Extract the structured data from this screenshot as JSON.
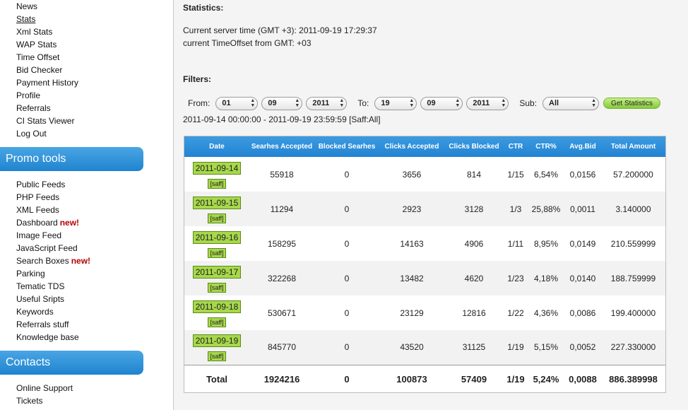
{
  "sidebar": {
    "top_items": [
      "News",
      "Stats",
      "Xml Stats",
      "WAP Stats",
      "Time Offset",
      "Bid Checker",
      "Payment History",
      "Profile",
      "Referrals",
      "CI Stats Viewer",
      "Log Out"
    ],
    "promo_title": "Promo tools",
    "promo_items": [
      {
        "label": "Public Feeds",
        "badge": ""
      },
      {
        "label": "PHP Feeds",
        "badge": ""
      },
      {
        "label": "XML Feeds",
        "badge": ""
      },
      {
        "label": "Dashboard",
        "badge": "new!"
      },
      {
        "label": "Image Feed",
        "badge": ""
      },
      {
        "label": "JavaScript Feed",
        "badge": ""
      },
      {
        "label": "Search Boxes",
        "badge": "new!"
      },
      {
        "label": "Parking",
        "badge": ""
      },
      {
        "label": "Tematic TDS",
        "badge": ""
      },
      {
        "label": "Useful Sripts",
        "badge": ""
      },
      {
        "label": "Keywords",
        "badge": ""
      },
      {
        "label": "Referrals stuff",
        "badge": ""
      },
      {
        "label": "Knowledge base",
        "badge": ""
      }
    ],
    "contacts_title": "Contacts",
    "contacts_items": [
      "Online Support",
      "Tickets"
    ]
  },
  "main": {
    "stats_title": "Statistics:",
    "server_time": "Current server time (GMT +3): 2011-09-19 17:29:37",
    "offset_line": "current TimeOffset from GMT: +03",
    "filters_title": "Filters:",
    "filters": {
      "from_label": "From:",
      "from_day": "01",
      "from_month": "09",
      "from_year": "2011",
      "to_label": "To:",
      "to_day": "19",
      "to_month": "09",
      "to_year": "2011",
      "sub_label": "Sub:",
      "sub_value": "All",
      "button_label": "Get Statistics"
    },
    "range_line": "2011-09-14 00:00:00 - 2011-09-19 23:59:59 [Saff:All]"
  },
  "table": {
    "headers": [
      "Date",
      "Searhes Accepted",
      "Blocked Searhes",
      "Clicks Accepted",
      "Clicks Blocked",
      "CTR",
      "CTR%",
      "Avg.Bid",
      "Total Amount"
    ],
    "rows": [
      {
        "date": "2011-09-14",
        "sub": "[saff]",
        "searches_accepted": "55918",
        "blocked_searches": "0",
        "clicks_accepted": "3656",
        "clicks_blocked": "814",
        "ctr": "1/15",
        "ctr_pct": "6,54%",
        "avg_bid": "0,0156",
        "total": "57.200000"
      },
      {
        "date": "2011-09-15",
        "sub": "[saff]",
        "searches_accepted": "11294",
        "blocked_searches": "0",
        "clicks_accepted": "2923",
        "clicks_blocked": "3128",
        "ctr": "1/3",
        "ctr_pct": "25,88%",
        "avg_bid": "0,0011",
        "total": "3.140000"
      },
      {
        "date": "2011-09-16",
        "sub": "[saff]",
        "searches_accepted": "158295",
        "blocked_searches": "0",
        "clicks_accepted": "14163",
        "clicks_blocked": "4906",
        "ctr": "1/11",
        "ctr_pct": "8,95%",
        "avg_bid": "0,0149",
        "total": "210.559999"
      },
      {
        "date": "2011-09-17",
        "sub": "[saff]",
        "searches_accepted": "322268",
        "blocked_searches": "0",
        "clicks_accepted": "13482",
        "clicks_blocked": "4620",
        "ctr": "1/23",
        "ctr_pct": "4,18%",
        "avg_bid": "0,0140",
        "total": "188.759999"
      },
      {
        "date": "2011-09-18",
        "sub": "[saff]",
        "searches_accepted": "530671",
        "blocked_searches": "0",
        "clicks_accepted": "23129",
        "clicks_blocked": "12816",
        "ctr": "1/22",
        "ctr_pct": "4,36%",
        "avg_bid": "0,0086",
        "total": "199.400000"
      },
      {
        "date": "2011-09-19",
        "sub": "[saff]",
        "searches_accepted": "845770",
        "blocked_searches": "0",
        "clicks_accepted": "43520",
        "clicks_blocked": "31125",
        "ctr": "1/19",
        "ctr_pct": "5,15%",
        "avg_bid": "0,0052",
        "total": "227.330000"
      }
    ],
    "totals": {
      "label": "Total",
      "searches_accepted": "1924216",
      "blocked_searches": "0",
      "clicks_accepted": "100873",
      "clicks_blocked": "57409",
      "ctr": "1/19",
      "ctr_pct": "5,24%",
      "avg_bid": "0,0088",
      "total": "886.389998"
    }
  },
  "colors": {
    "section_header": "#2b8dd8",
    "table_header": "#2f8fdb",
    "date_badge": "#a7d84b",
    "new_badge": "#b50000",
    "button": "#9fd95a"
  },
  "icons": {
    "select_arrows": "updown-arrows-icon"
  }
}
